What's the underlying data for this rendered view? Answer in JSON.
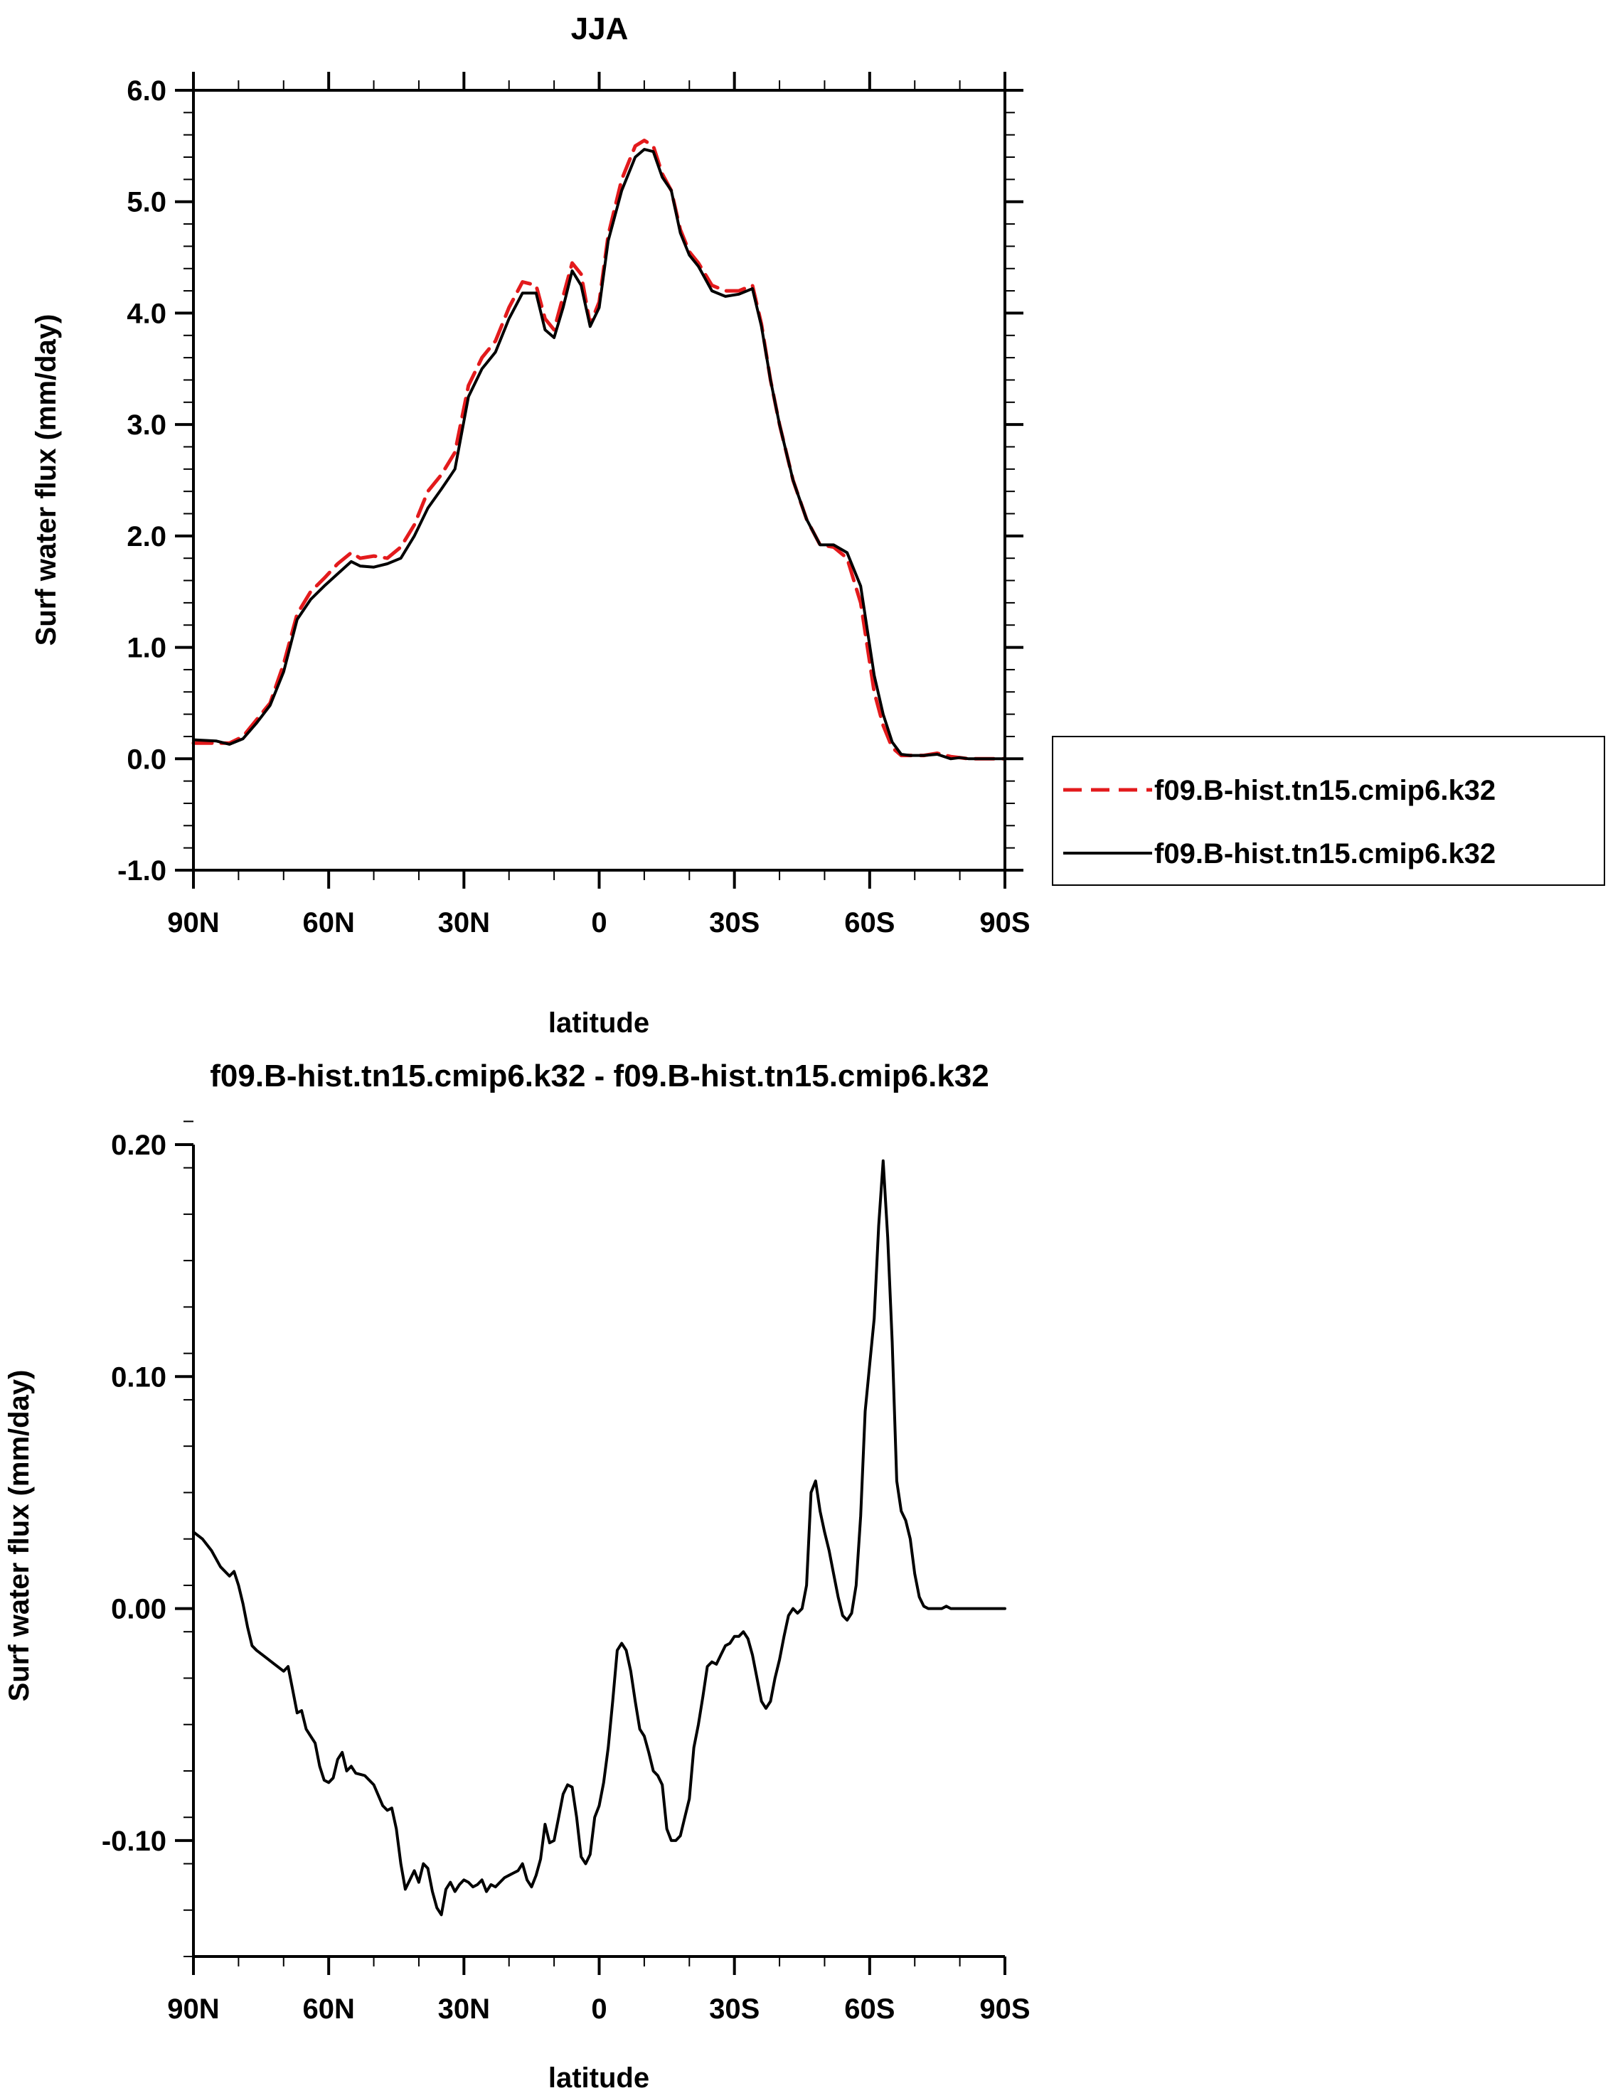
{
  "chart_data": [
    {
      "type": "line",
      "title": "JJA",
      "xlabel": "latitude",
      "ylabel": "Surf water flux (mm/day)",
      "xlim": [
        -90,
        90
      ],
      "ylim": [
        -1.0,
        6.0
      ],
      "x_ticks": [
        -90,
        -60,
        -30,
        0,
        30,
        60,
        90
      ],
      "x_tick_labels": [
        "90N",
        "60N",
        "30N",
        "0",
        "30S",
        "60S",
        "90S"
      ],
      "y_ticks": [
        -1.0,
        0.0,
        1.0,
        2.0,
        3.0,
        4.0,
        5.0,
        6.0
      ],
      "y_tick_labels": [
        "-1.0",
        "0.0",
        "1.0",
        "2.0",
        "3.0",
        "4.0",
        "5.0",
        "6.0"
      ],
      "legend_position": "right",
      "series": [
        {
          "name": "f09.B-hist.tn15.cmip6.k32",
          "color": "#e31a1c",
          "style": "dashed",
          "x": [
            -90,
            -85,
            -82,
            -79,
            -76,
            -73,
            -70,
            -67,
            -64,
            -61,
            -58,
            -55,
            -53,
            -50,
            -47,
            -44,
            -41,
            -38,
            -35,
            -32,
            -29,
            -26,
            -23,
            -20,
            -17,
            -14,
            -12,
            -10,
            -8,
            -6,
            -4,
            -2,
            0,
            2,
            5,
            8,
            10,
            12,
            14,
            16,
            18,
            20,
            22,
            25,
            28,
            31,
            34,
            36,
            38,
            40,
            43,
            46,
            49,
            52,
            55,
            58,
            61,
            63,
            65,
            67,
            69,
            72,
            75,
            78,
            80,
            82,
            85,
            90
          ],
          "y": [
            0.14,
            0.14,
            0.14,
            0.2,
            0.35,
            0.5,
            0.85,
            1.3,
            1.5,
            1.62,
            1.75,
            1.85,
            1.8,
            1.82,
            1.8,
            1.9,
            2.1,
            2.4,
            2.55,
            2.75,
            3.35,
            3.6,
            3.75,
            4.05,
            4.28,
            4.25,
            3.95,
            3.85,
            4.15,
            4.45,
            4.35,
            3.9,
            4.1,
            4.7,
            5.2,
            5.5,
            5.55,
            5.5,
            5.25,
            5.1,
            4.75,
            4.55,
            4.45,
            4.25,
            4.2,
            4.2,
            4.25,
            3.9,
            3.4,
            3.0,
            2.5,
            2.15,
            1.92,
            1.9,
            1.8,
            1.4,
            0.6,
            0.3,
            0.1,
            0.03,
            0.03,
            0.03,
            0.05,
            0.02,
            0.01,
            0.0,
            0.0,
            0.0
          ]
        },
        {
          "name": "f09.B-hist.tn15.cmip6.k32",
          "color": "#000000",
          "style": "solid",
          "x": [
            -90,
            -85,
            -82,
            -79,
            -76,
            -73,
            -70,
            -67,
            -64,
            -61,
            -58,
            -55,
            -53,
            -50,
            -47,
            -44,
            -41,
            -38,
            -35,
            -32,
            -29,
            -26,
            -23,
            -20,
            -17,
            -14,
            -12,
            -10,
            -8,
            -6,
            -4,
            -2,
            0,
            2,
            5,
            8,
            10,
            12,
            14,
            16,
            18,
            20,
            22,
            25,
            28,
            31,
            34,
            36,
            38,
            40,
            43,
            46,
            49,
            52,
            55,
            58,
            61,
            63,
            65,
            67,
            69,
            72,
            75,
            78,
            80,
            82,
            85,
            90
          ],
          "y": [
            0.17,
            0.16,
            0.13,
            0.18,
            0.32,
            0.48,
            0.78,
            1.25,
            1.43,
            1.55,
            1.66,
            1.77,
            1.73,
            1.72,
            1.75,
            1.8,
            2.0,
            2.25,
            2.42,
            2.6,
            3.25,
            3.5,
            3.65,
            3.95,
            4.18,
            4.18,
            3.85,
            3.78,
            4.05,
            4.38,
            4.25,
            3.88,
            4.05,
            4.65,
            5.1,
            5.4,
            5.47,
            5.45,
            5.22,
            5.1,
            4.72,
            4.52,
            4.42,
            4.2,
            4.15,
            4.17,
            4.22,
            3.88,
            3.4,
            3.0,
            2.5,
            2.15,
            1.92,
            1.92,
            1.85,
            1.55,
            0.75,
            0.4,
            0.15,
            0.04,
            0.03,
            0.03,
            0.04,
            0.0,
            0.01,
            0.0,
            0.0,
            0.0
          ]
        }
      ]
    },
    {
      "type": "line",
      "title": "f09.B-hist.tn15.cmip6.k32 - f09.B-hist.tn15.cmip6.k32",
      "xlabel": "latitude",
      "ylabel": "Surf water flux (mm/day)",
      "xlim": [
        -90,
        90
      ],
      "ylim": [
        -0.15,
        0.2
      ],
      "x_ticks": [
        -90,
        -60,
        -30,
        0,
        30,
        60,
        90
      ],
      "x_tick_labels": [
        "90N",
        "60N",
        "30N",
        "0",
        "30S",
        "60S",
        "90S"
      ],
      "y_ticks": [
        -0.1,
        0.0,
        0.1,
        0.2
      ],
      "y_tick_labels": [
        "-0.10",
        "0.00",
        "0.10",
        "0.20"
      ],
      "series": [
        {
          "color": "#000000",
          "style": "solid",
          "x": [
            -90,
            -88,
            -86,
            -84,
            -82,
            -81,
            -80,
            -79,
            -78,
            -77,
            -76,
            -74,
            -72,
            -70,
            -69,
            -68,
            -67,
            -66,
            -65,
            -64,
            -63,
            -62,
            -61,
            -60,
            -59,
            -58,
            -57,
            -56,
            -55,
            -54,
            -52,
            -50,
            -48,
            -47,
            -46,
            -45,
            -44,
            -43,
            -42,
            -41,
            -40,
            -39,
            -38,
            -37,
            -36,
            -35,
            -34,
            -33,
            -32,
            -31,
            -30,
            -29,
            -28,
            -27,
            -26,
            -25,
            -24,
            -23,
            -22,
            -21,
            -20,
            -19,
            -18,
            -17,
            -16,
            -15,
            -14,
            -13,
            -12,
            -11,
            -10,
            -9,
            -8,
            -7,
            -6,
            -5,
            -4,
            -3,
            -2,
            -1,
            0,
            1,
            2,
            3,
            4,
            5,
            6,
            7,
            8,
            9,
            10,
            11,
            12,
            13,
            14,
            15,
            16,
            17,
            18,
            19,
            20,
            21,
            22,
            23,
            24,
            25,
            26,
            27,
            28,
            29,
            30,
            31,
            32,
            33,
            34,
            35,
            36,
            37,
            38,
            39,
            40,
            41,
            42,
            43,
            44,
            45,
            46,
            47,
            48,
            49,
            50,
            51,
            52,
            53,
            54,
            55,
            56,
            57,
            58,
            59,
            60,
            61,
            62,
            63,
            64,
            65,
            66,
            67,
            68,
            69,
            70,
            71,
            72,
            73,
            74,
            75,
            76,
            77,
            78,
            79,
            80,
            82,
            85,
            90
          ],
          "y": [
            0.033,
            0.03,
            0.025,
            0.018,
            0.014,
            0.016,
            0.01,
            0.002,
            -0.008,
            -0.016,
            -0.018,
            -0.021,
            -0.024,
            -0.027,
            -0.025,
            -0.035,
            -0.045,
            -0.044,
            -0.052,
            -0.055,
            -0.058,
            -0.068,
            -0.074,
            -0.075,
            -0.073,
            -0.065,
            -0.062,
            -0.07,
            -0.068,
            -0.071,
            -0.072,
            -0.076,
            -0.085,
            -0.087,
            -0.086,
            -0.095,
            -0.11,
            -0.121,
            -0.117,
            -0.113,
            -0.118,
            -0.11,
            -0.112,
            -0.122,
            -0.129,
            -0.132,
            -0.121,
            -0.118,
            -0.122,
            -0.119,
            -0.117,
            -0.118,
            -0.12,
            -0.119,
            -0.117,
            -0.122,
            -0.119,
            -0.12,
            -0.118,
            -0.116,
            -0.115,
            -0.114,
            -0.113,
            -0.11,
            -0.117,
            -0.12,
            -0.115,
            -0.108,
            -0.093,
            -0.101,
            -0.1,
            -0.09,
            -0.08,
            -0.076,
            -0.077,
            -0.09,
            -0.107,
            -0.11,
            -0.106,
            -0.09,
            -0.085,
            -0.075,
            -0.06,
            -0.04,
            -0.018,
            -0.015,
            -0.018,
            -0.027,
            -0.04,
            -0.052,
            -0.055,
            -0.062,
            -0.07,
            -0.072,
            -0.076,
            -0.095,
            -0.1,
            -0.1,
            -0.098,
            -0.09,
            -0.082,
            -0.06,
            -0.05,
            -0.038,
            -0.025,
            -0.023,
            -0.024,
            -0.02,
            -0.016,
            -0.015,
            -0.012,
            -0.012,
            -0.01,
            -0.013,
            -0.02,
            -0.03,
            -0.04,
            -0.043,
            -0.04,
            -0.03,
            -0.022,
            -0.012,
            -0.003,
            0.0,
            -0.002,
            0.0,
            0.01,
            0.05,
            0.055,
            0.042,
            0.033,
            0.025,
            0.015,
            0.005,
            -0.003,
            -0.005,
            -0.002,
            0.01,
            0.04,
            0.085,
            0.105,
            0.125,
            0.165,
            0.193,
            0.16,
            0.115,
            0.055,
            0.042,
            0.038,
            0.03,
            0.015,
            0.005,
            0.001,
            0.0,
            0.0,
            0.0,
            0.0,
            0.001,
            0.0,
            0.0,
            0.0,
            0.0,
            0.0,
            0.0
          ]
        }
      ]
    }
  ]
}
